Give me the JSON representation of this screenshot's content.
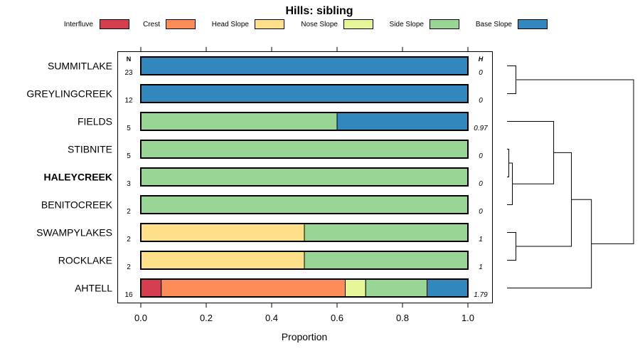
{
  "chart_data": {
    "type": "bar",
    "orientation": "horizontal",
    "stacked": true,
    "title": "Hills: sibling",
    "xlabel": "Proportion",
    "ylabel": "",
    "xlim": [
      0,
      1
    ],
    "x_ticks": [
      "0.0",
      "0.2",
      "0.4",
      "0.6",
      "0.8",
      "1.0"
    ],
    "n_header": "N",
    "h_header": "H",
    "legend_position": "top",
    "categories": [
      {
        "name": "Interfluve",
        "color": "#D53E4F"
      },
      {
        "name": "Crest",
        "color": "#FC8D59"
      },
      {
        "name": "Head Slope",
        "color": "#FEE08B"
      },
      {
        "name": "Nose Slope",
        "color": "#E6F598"
      },
      {
        "name": "Side Slope",
        "color": "#99D594"
      },
      {
        "name": "Base Slope",
        "color": "#3288BD"
      }
    ],
    "rows": [
      {
        "label": "SUMMITLAKE",
        "bold": false,
        "n": "23",
        "h": "0",
        "values": [
          0,
          0,
          0,
          0,
          0,
          1.0
        ]
      },
      {
        "label": "GREYLINGCREEK",
        "bold": false,
        "n": "12",
        "h": "0",
        "values": [
          0,
          0,
          0,
          0,
          0,
          1.0
        ]
      },
      {
        "label": "FIELDS",
        "bold": false,
        "n": "5",
        "h": "0.97",
        "values": [
          0,
          0,
          0,
          0,
          0.6,
          0.4
        ]
      },
      {
        "label": "STIBNITE",
        "bold": false,
        "n": "5",
        "h": "0",
        "values": [
          0,
          0,
          0,
          0,
          1.0,
          0
        ]
      },
      {
        "label": "HALEYCREEK",
        "bold": true,
        "n": "3",
        "h": "0",
        "values": [
          0,
          0,
          0,
          0,
          1.0,
          0
        ]
      },
      {
        "label": "BENITOCREEK",
        "bold": false,
        "n": "2",
        "h": "0",
        "values": [
          0,
          0,
          0,
          0,
          1.0,
          0
        ]
      },
      {
        "label": "SWAMPYLAKES",
        "bold": false,
        "n": "2",
        "h": "1",
        "values": [
          0,
          0,
          0.5,
          0,
          0.5,
          0
        ]
      },
      {
        "label": "ROCKLAKE",
        "bold": false,
        "n": "2",
        "h": "1",
        "values": [
          0,
          0,
          0.5,
          0,
          0.5,
          0
        ]
      },
      {
        "label": "AHTELL",
        "bold": false,
        "n": "16",
        "h": "1.79",
        "values": [
          0.0625,
          0.5625,
          0,
          0.0625,
          0.1875,
          0.125
        ]
      }
    ],
    "dendrogram": {
      "merges": [
        {
          "left": "SUMMITLAKE",
          "right": "GREYLINGCREEK",
          "height": 0.02
        },
        {
          "left": "STIBNITE",
          "right": "HALEYCREEK",
          "height": 0.004
        },
        {
          "left": "{STIBNITE,HALEYCREEK}",
          "right": "BENITOCREEK",
          "height": 0.012
        },
        {
          "left": "FIELDS",
          "right": "{STIBNITE,HALEYCREEK,BENITOCREEK}",
          "height": 0.105
        },
        {
          "left": "SWAMPYLAKES",
          "right": "ROCKLAKE",
          "height": 0.02
        },
        {
          "left": "{FIELDS..BENITOCREEK}",
          "right": "{SWAMPYLAKES,ROCKLAKE}",
          "height": 0.145
        },
        {
          "left": "{FIELDS..ROCKLAKE}",
          "right": "AHTELL",
          "height": 0.19
        },
        {
          "left": "{SUMMITLAKE,GREYLINGCREEK}",
          "right": "{FIELDS..AHTELL}",
          "height": 0.285
        }
      ]
    }
  }
}
